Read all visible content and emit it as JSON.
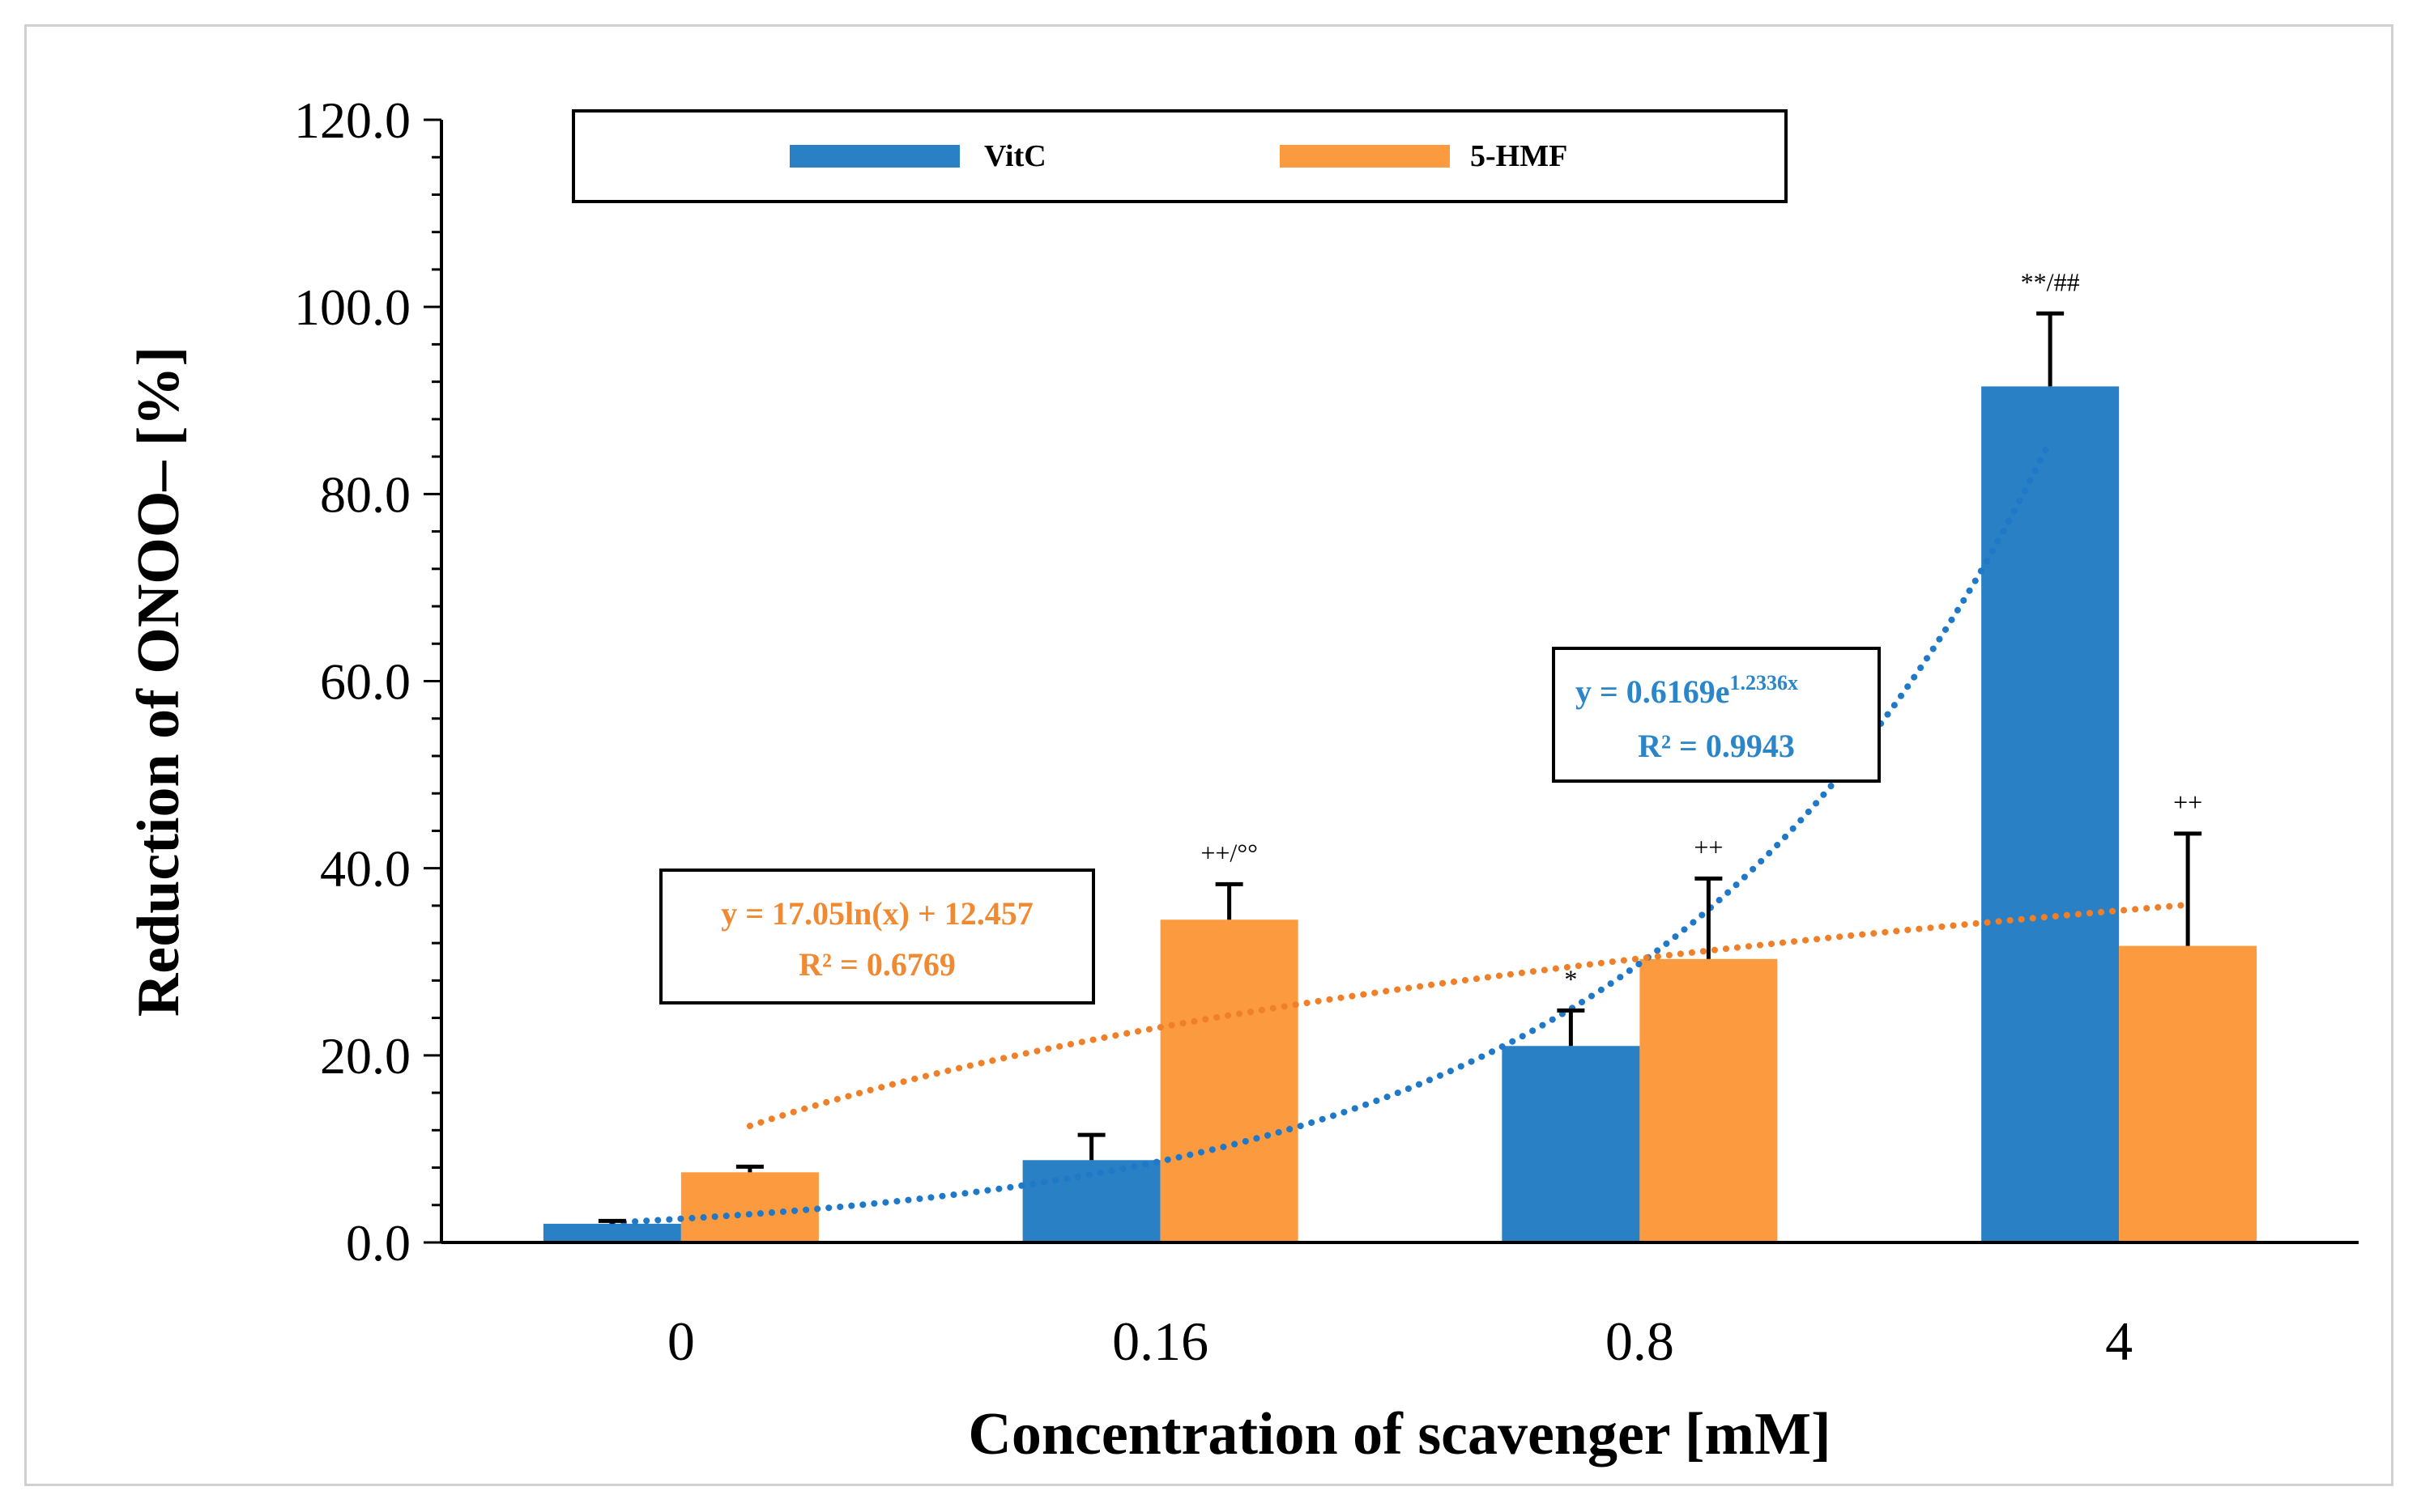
{
  "chart_data": {
    "type": "bar",
    "xlabel": "Concentration of scavenger [mM]",
    "ylabel": "Reduction of ONOO–  [%]",
    "ylim": [
      0,
      120
    ],
    "yticks": [
      "0.0",
      "20.0",
      "40.0",
      "60.0",
      "80.0",
      "100.0",
      "120.0"
    ],
    "categories": [
      "0",
      "0.16",
      "0.8",
      "4"
    ],
    "legend_position": "top",
    "series": [
      {
        "name": "VitC",
        "color": "#2980c4",
        "values": [
          2.0,
          8.8,
          21.0,
          91.5
        ],
        "errors": [
          0.3,
          2.7,
          3.8,
          7.8
        ],
        "annotations": [
          "",
          "",
          "*",
          "**/##"
        ]
      },
      {
        "name": "5-HMF",
        "color": "#fb9a3e",
        "values": [
          7.5,
          34.5,
          30.3,
          31.7
        ],
        "errors": [
          0.6,
          3.8,
          8.6,
          12.0
        ],
        "annotations": [
          "",
          "++/°°",
          "++",
          "++"
        ]
      }
    ],
    "trendlines": [
      {
        "series": "VitC",
        "type": "exponential",
        "a": 0.6169,
        "b": 1.2336,
        "color": "#1f78c8",
        "equation_main": "y = 0.6169e",
        "equation_exp": "1.2336x",
        "r2": "R² = 0.9943"
      },
      {
        "series": "5-HMF",
        "type": "logarithmic",
        "a": 17.05,
        "b": 12.457,
        "color": "#f07f2a",
        "equation": "y = 17.05ln(x) + 12.457",
        "r2": "R² = 0.6769"
      }
    ]
  }
}
